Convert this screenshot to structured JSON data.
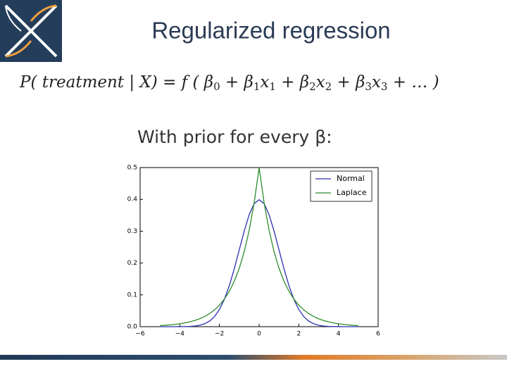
{
  "slide": {
    "title": "Regularized regression",
    "formula": [
      {
        "text": "P( treatment | X) = f ( β",
        "sub": "0"
      },
      {
        "text": " + β",
        "sub": "1"
      },
      {
        "text": "x",
        "sub": "1"
      },
      {
        "text": " + β",
        "sub": "2"
      },
      {
        "text": "x",
        "sub": "2"
      },
      {
        "text": " + β",
        "sub": "3"
      },
      {
        "text": "x",
        "sub": "3"
      },
      {
        "text": " + … )"
      }
    ],
    "subheading": "With prior for every β:"
  },
  "chart_data": {
    "type": "line",
    "x": [
      -5,
      -4.75,
      -4.5,
      -4.25,
      -4,
      -3.75,
      -3.5,
      -3.25,
      -3,
      -2.75,
      -2.5,
      -2.25,
      -2,
      -1.75,
      -1.5,
      -1.25,
      -1,
      -0.75,
      -0.5,
      -0.25,
      0,
      0.25,
      0.5,
      0.75,
      1,
      1.25,
      1.5,
      1.75,
      2,
      2.25,
      2.5,
      2.75,
      3,
      3.25,
      3.5,
      3.75,
      4,
      4.25,
      4.5,
      4.75,
      5
    ],
    "series": [
      {
        "name": "Normal",
        "color": "#2b2fae",
        "values": [
          0,
          0,
          0,
          0,
          0.0001,
          0.0004,
          0.0009,
          0.002,
          0.0044,
          0.0091,
          0.0175,
          0.0317,
          0.054,
          0.0863,
          0.1295,
          0.1826,
          0.242,
          0.3011,
          0.3521,
          0.3867,
          0.3989,
          0.3867,
          0.3521,
          0.3011,
          0.242,
          0.1826,
          0.1295,
          0.0863,
          0.054,
          0.0317,
          0.0175,
          0.0091,
          0.0044,
          0.002,
          0.0009,
          0.0004,
          0.0001,
          0,
          0,
          0,
          0
        ]
      },
      {
        "name": "Laplace",
        "color": "#2e8b2e",
        "values": [
          0.0034,
          0.0043,
          0.0056,
          0.0071,
          0.0092,
          0.0118,
          0.0151,
          0.0194,
          0.0249,
          0.032,
          0.041,
          0.0527,
          0.0677,
          0.0869,
          0.1116,
          0.1433,
          0.1839,
          0.2362,
          0.3033,
          0.3894,
          0.5,
          0.3894,
          0.3033,
          0.2362,
          0.1839,
          0.1433,
          0.1116,
          0.0869,
          0.0677,
          0.0527,
          0.041,
          0.032,
          0.0249,
          0.0194,
          0.0151,
          0.0118,
          0.0092,
          0.0071,
          0.0056,
          0.0043,
          0.0034
        ]
      }
    ],
    "xlim": [
      -6,
      6
    ],
    "ylim": [
      0,
      0.5
    ],
    "xticks": [
      {
        "value": -6,
        "label": "−6"
      },
      {
        "value": -4,
        "label": "−4"
      },
      {
        "value": -2,
        "label": "−2"
      },
      0,
      2,
      4,
      6
    ],
    "yticks": [
      {
        "value": 0,
        "label": "0.0"
      },
      0.1,
      0.2,
      0.3,
      0.4,
      0.5
    ],
    "legend": "upper right"
  }
}
